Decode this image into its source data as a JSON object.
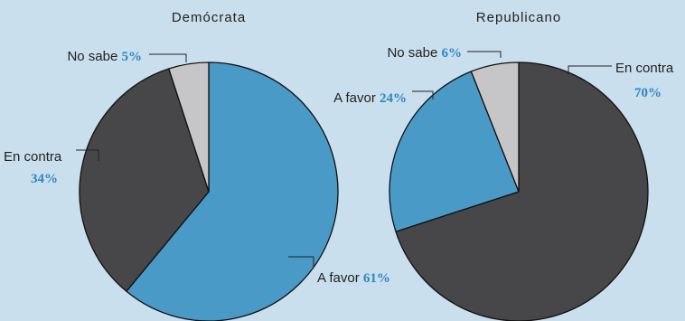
{
  "colors": {
    "background": "#c9dfed",
    "a_favor": "#4a9ac8",
    "en_contra": "#474749",
    "no_sabe": "#c6c6c8",
    "percent_text": "#2f86c0"
  },
  "chart_data": [
    {
      "type": "pie",
      "title": "Demócrata",
      "slices": [
        {
          "key": "a_favor",
          "label": "A favor",
          "value": 61,
          "display": "61%"
        },
        {
          "key": "en_contra",
          "label": "En contra",
          "value": 34,
          "display": "34%"
        },
        {
          "key": "no_sabe",
          "label": "No sabe",
          "value": 5,
          "display": "5%"
        }
      ]
    },
    {
      "type": "pie",
      "title": "Republicano",
      "slices": [
        {
          "key": "en_contra",
          "label": "En contra",
          "value": 70,
          "display": "70%"
        },
        {
          "key": "a_favor",
          "label": "A favor",
          "value": 24,
          "display": "24%"
        },
        {
          "key": "no_sabe",
          "label": "No sabe",
          "value": 6,
          "display": "6%"
        }
      ]
    }
  ]
}
